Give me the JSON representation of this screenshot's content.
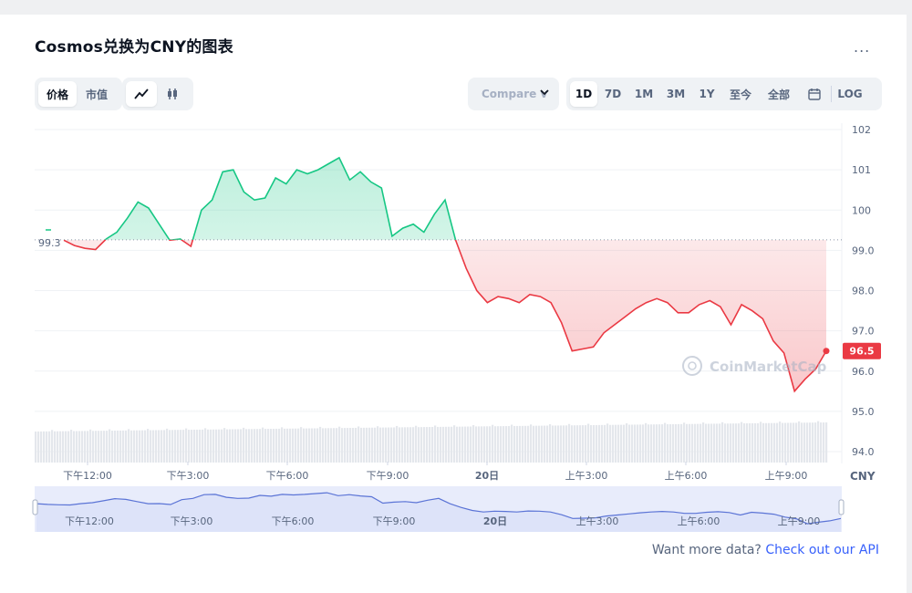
{
  "title": "Cosmos兑换为CNY的图表",
  "more_label": "...",
  "toggle_price_label": "价格",
  "toggle_marketcap_label": "市值",
  "compare_label": "Compare v",
  "ranges": [
    "1D",
    "7D",
    "1M",
    "3M",
    "1Y",
    "至今",
    "全部"
  ],
  "log_label": "LOG",
  "open_price_label": "99.3",
  "current_price_label": "96.5",
  "currency_label": "CNY",
  "watermark": "CoinMarketCap",
  "footer_text": "Want more data?",
  "footer_link": "Check out our API",
  "colors": {
    "up": "#16c784",
    "down": "#ea3943",
    "accent": "#3861fb",
    "navigator": "#5b74d6"
  },
  "chart_data": {
    "type": "line",
    "ylim": [
      94,
      102
    ],
    "yticks": [
      "102",
      "101",
      "100",
      "99.0",
      "98.0",
      "97.0",
      "96.0",
      "95.0",
      "94.0"
    ],
    "xticks": [
      "下午12:00",
      "下午3:00",
      "下午6:00",
      "下午9:00",
      "20日",
      "上午3:00",
      "上午6:00",
      "上午9:00"
    ],
    "baseline": 99.26,
    "prices": [
      99.25,
      99.12,
      99.05,
      99.02,
      99.28,
      99.45,
      99.8,
      100.2,
      100.05,
      99.65,
      99.25,
      99.28,
      99.1,
      100.0,
      100.25,
      100.95,
      101.0,
      100.45,
      100.25,
      100.3,
      100.8,
      100.65,
      101.0,
      100.9,
      101.0,
      101.15,
      101.3,
      100.75,
      100.95,
      100.7,
      100.55,
      99.35,
      99.55,
      99.65,
      99.45,
      99.9,
      100.25,
      99.25,
      98.55,
      98.0,
      97.7,
      97.85,
      97.8,
      97.7,
      97.9,
      97.85,
      97.7,
      97.2,
      96.5,
      96.55,
      96.6,
      96.95,
      97.15,
      97.35,
      97.55,
      97.7,
      97.8,
      97.7,
      97.45,
      97.45,
      97.65,
      97.75,
      97.6,
      97.15,
      97.65,
      97.5,
      97.3,
      96.75,
      96.45,
      95.5,
      95.8,
      96.05,
      96.5
    ],
    "volume_label_count": 10
  }
}
